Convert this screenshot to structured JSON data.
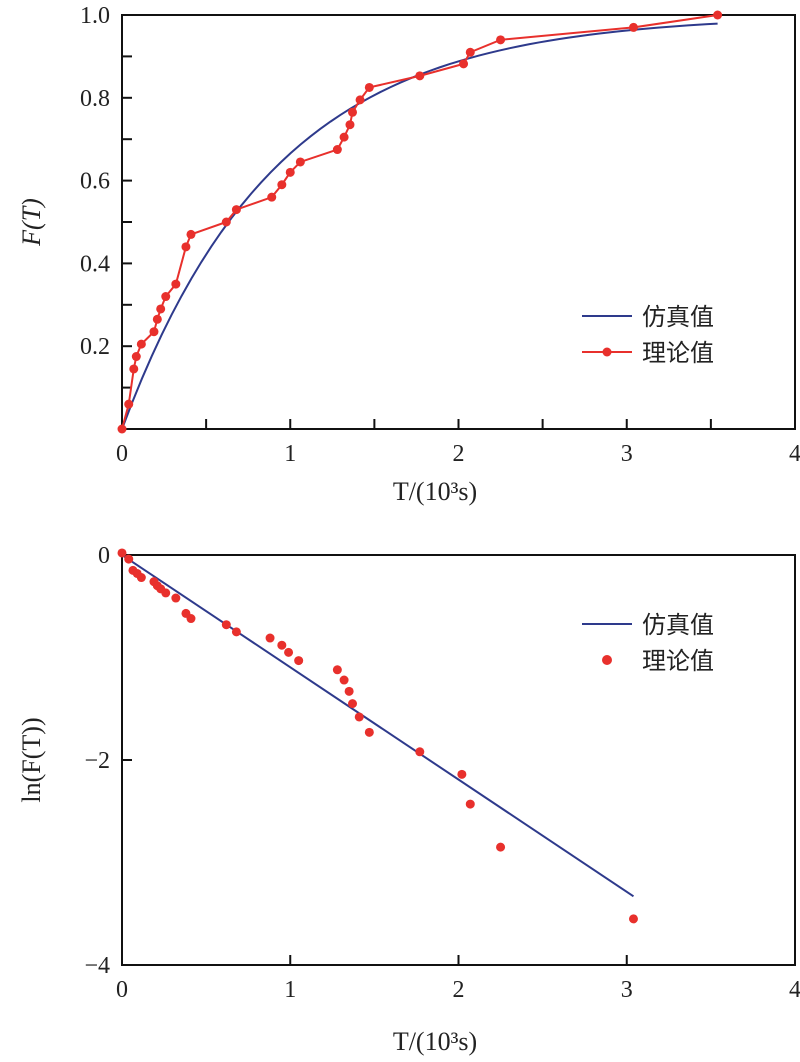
{
  "colors": {
    "sim": "#2e3a8c",
    "theory": "#e8302c",
    "axis": "#111111"
  },
  "chart_data": [
    {
      "type": "line",
      "title": "",
      "xlabel": "T/(10³s)",
      "ylabel": "F(T)",
      "xlim": [
        0,
        4
      ],
      "ylim": [
        0,
        1.0
      ],
      "xticks": [
        "0",
        "1",
        "2",
        "3",
        "4"
      ],
      "yticks": [
        "0.2",
        "0.4",
        "0.6",
        "0.8",
        "1.0"
      ],
      "legend_position": "right",
      "series": [
        {
          "name": "仿真值",
          "style": "line",
          "rate": 1.095,
          "x_max": 3.54
        },
        {
          "name": "理论值",
          "style": "line-marker",
          "x": [
            0,
            0.04,
            0.07,
            0.085,
            0.115,
            0.19,
            0.21,
            0.23,
            0.26,
            0.32,
            0.38,
            0.41,
            0.62,
            0.68,
            0.89,
            0.95,
            1.0,
            1.06,
            1.28,
            1.32,
            1.355,
            1.37,
            1.415,
            1.47,
            1.77,
            2.03,
            2.07,
            2.25,
            3.04,
            3.54
          ],
          "y": [
            0,
            0.06,
            0.145,
            0.175,
            0.205,
            0.235,
            0.265,
            0.29,
            0.32,
            0.35,
            0.44,
            0.47,
            0.5,
            0.53,
            0.56,
            0.59,
            0.62,
            0.645,
            0.675,
            0.705,
            0.735,
            0.765,
            0.795,
            0.825,
            0.853,
            0.882,
            0.91,
            0.94,
            0.97,
            1.0
          ]
        }
      ]
    },
    {
      "type": "scatter",
      "title": "",
      "xlabel": "T/(10³s)",
      "ylabel": "ln(F(T))",
      "xlim": [
        0,
        4
      ],
      "ylim": [
        -4,
        0
      ],
      "xticks": [
        "0",
        "1",
        "2",
        "3",
        "4"
      ],
      "yticks": [
        "0",
        "−2",
        "−4"
      ],
      "legend_position": "top-right",
      "series": [
        {
          "name": "仿真值",
          "style": "line",
          "x": [
            0,
            3.04
          ],
          "y": [
            0,
            -3.33
          ]
        },
        {
          "name": "理论值",
          "style": "marker",
          "x": [
            0,
            0.04,
            0.065,
            0.09,
            0.115,
            0.19,
            0.21,
            0.23,
            0.26,
            0.32,
            0.38,
            0.41,
            0.62,
            0.68,
            0.88,
            0.95,
            0.99,
            1.05,
            1.28,
            1.32,
            1.35,
            1.37,
            1.41,
            1.47,
            1.77,
            2.02,
            2.07,
            2.25,
            3.04
          ],
          "y": [
            0.02,
            -0.04,
            -0.15,
            -0.18,
            -0.22,
            -0.26,
            -0.3,
            -0.33,
            -0.37,
            -0.42,
            -0.57,
            -0.62,
            -0.68,
            -0.75,
            -0.81,
            -0.88,
            -0.95,
            -1.03,
            -1.12,
            -1.22,
            -1.33,
            -1.45,
            -1.58,
            -1.73,
            -1.92,
            -2.14,
            -2.43,
            -2.85,
            -3.55
          ]
        }
      ]
    }
  ]
}
